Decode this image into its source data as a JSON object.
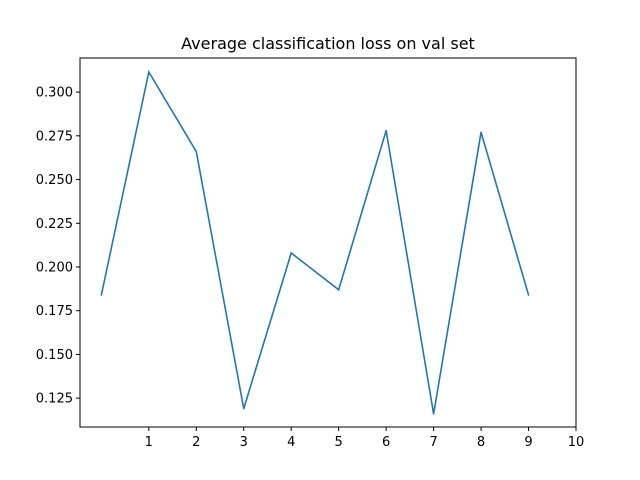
{
  "chart_data": {
    "type": "line",
    "title": "Average classification loss on val set",
    "xlabel": "",
    "ylabel": "",
    "x": [
      0,
      1,
      2,
      3,
      4,
      5,
      6,
      7,
      8,
      9
    ],
    "series": [
      {
        "values": [
          0.184,
          0.3115,
          0.266,
          0.119,
          0.208,
          0.187,
          0.278,
          0.116,
          0.277,
          0.184
        ],
        "color": "#1f77b4"
      }
    ],
    "xticks": [
      1,
      2,
      3,
      4,
      5,
      6,
      7,
      8,
      9,
      10
    ],
    "xtick_labels": [
      "1",
      "2",
      "3",
      "4",
      "5",
      "6",
      "7",
      "8",
      "9",
      "10"
    ],
    "yticks": [
      0.125,
      0.15,
      0.175,
      0.2,
      0.225,
      0.25,
      0.275,
      0.3
    ],
    "ytick_labels": [
      "0.125",
      "0.150",
      "0.175",
      "0.200",
      "0.225",
      "0.250",
      "0.275",
      "0.300"
    ],
    "xlim": [
      -0.45,
      10.0
    ],
    "ylim": [
      0.1085,
      0.3195
    ],
    "grid": false,
    "legend": false
  }
}
